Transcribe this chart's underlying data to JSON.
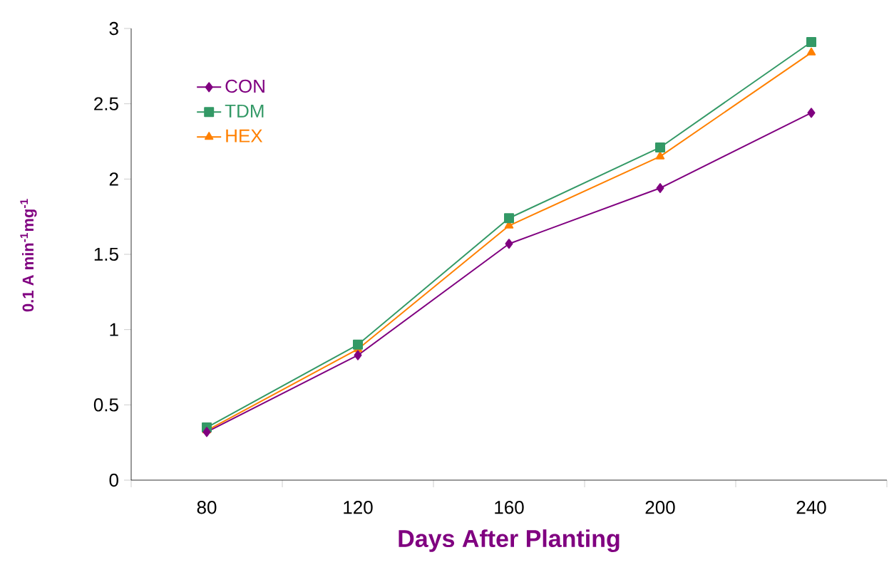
{
  "chart_data": {
    "type": "line",
    "xlabel": "Days After Planting",
    "ylabel": "0.1 A min$^{-1}$mg$^{-1}$",
    "categories": [
      "80",
      "120",
      "160",
      "200",
      "240"
    ],
    "series": [
      {
        "name": "CON",
        "color": "#800080",
        "marker": "diamond",
        "values": [
          0.32,
          0.83,
          1.57,
          1.94,
          2.44
        ]
      },
      {
        "name": "TDM",
        "color": "#339966",
        "marker": "square",
        "values": [
          0.35,
          0.9,
          1.74,
          2.21,
          2.91
        ]
      },
      {
        "name": "HEX",
        "color": "#ff8000",
        "marker": "triangle",
        "values": [
          0.33,
          0.87,
          1.69,
          2.15,
          2.84
        ]
      }
    ],
    "ylim": [
      0,
      3
    ],
    "yticks": [
      0,
      0.5,
      1,
      1.5,
      2,
      2.5,
      3
    ],
    "grid": false,
    "legend": "top left",
    "line_style": "solid"
  }
}
